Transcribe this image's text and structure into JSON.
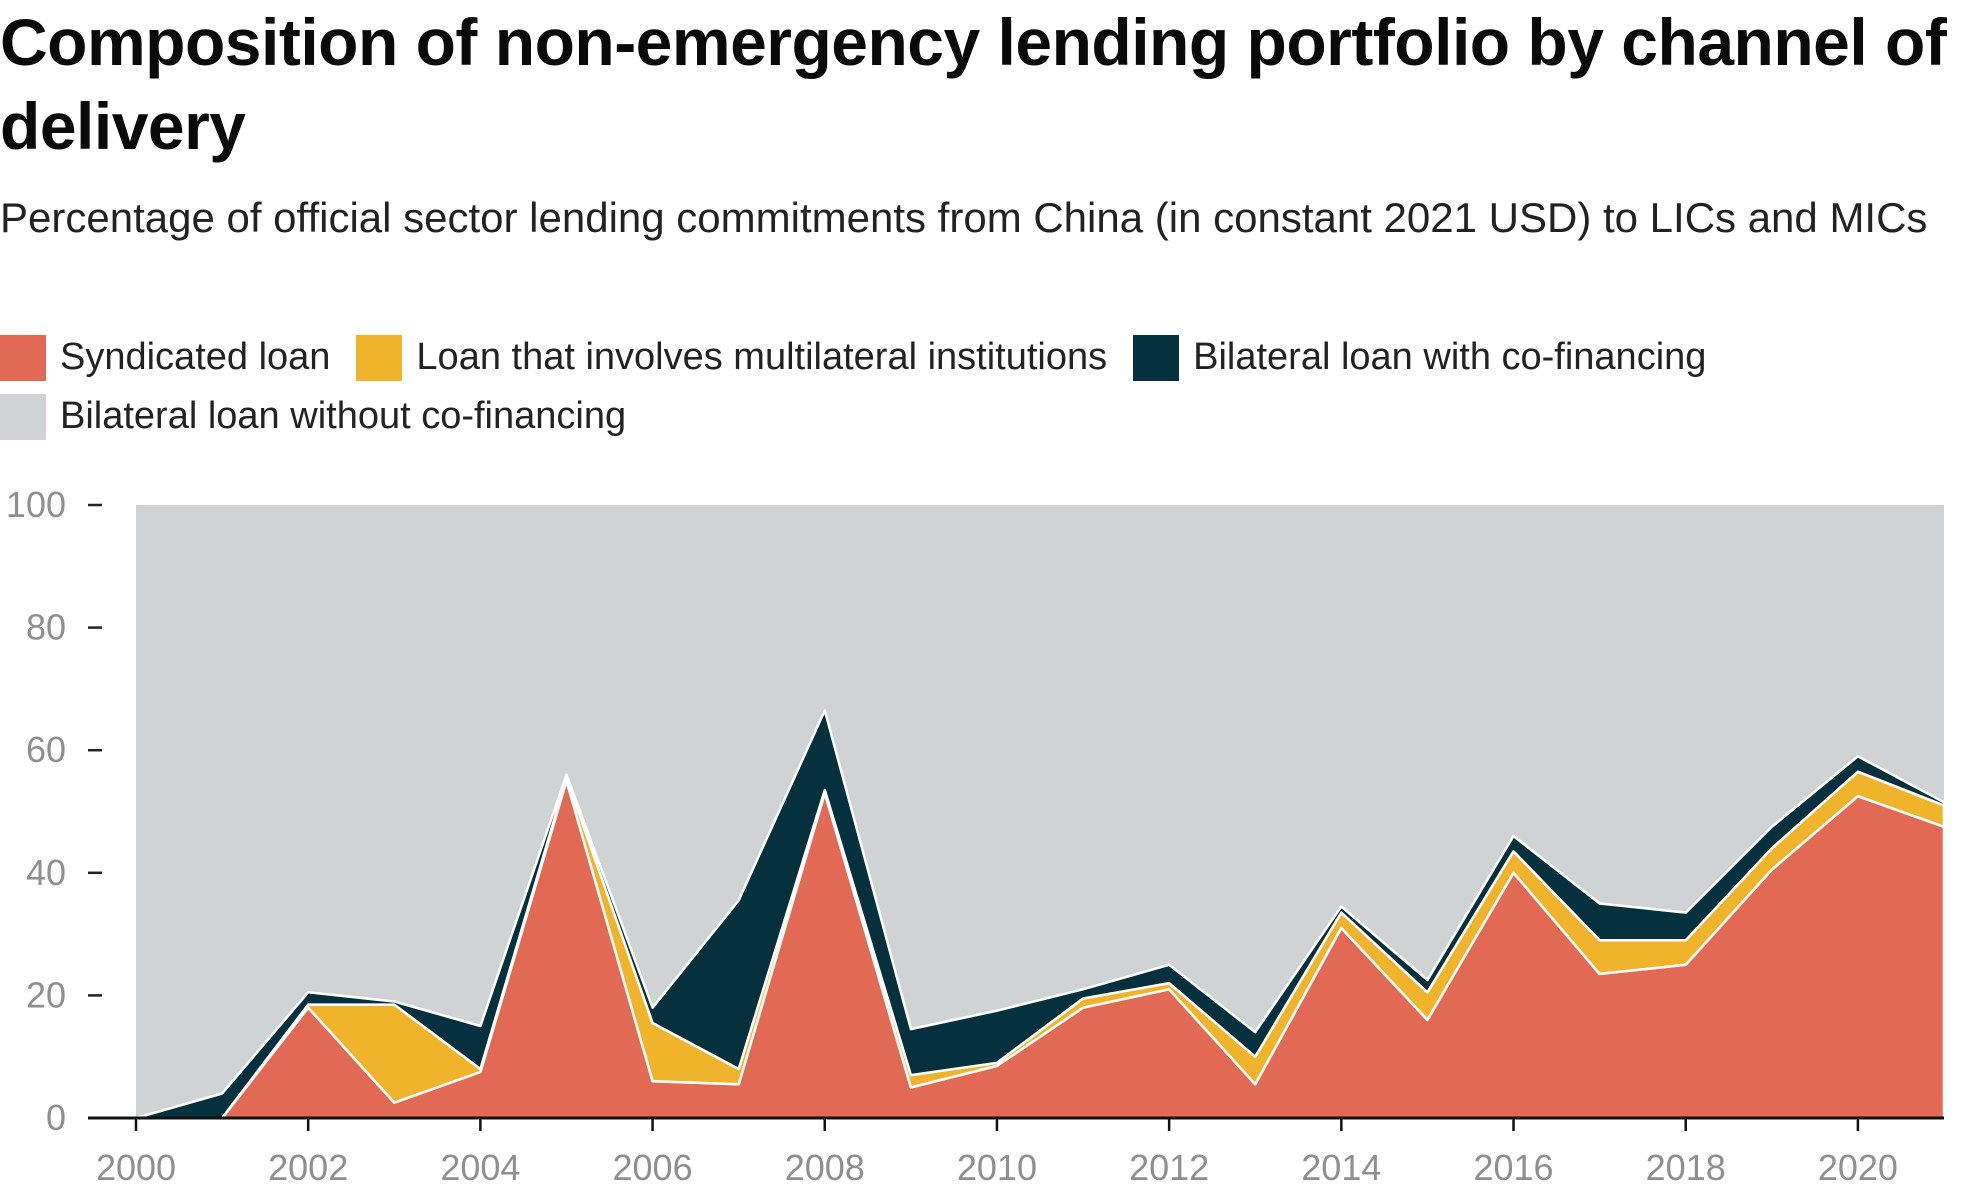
{
  "title": "Composition of non-emergency lending portfolio by channel of delivery",
  "subtitle": "Percentage of official sector lending commitments from China (in constant 2021 USD) to LICs and MICs",
  "colors": {
    "syndicated": "#e26a55",
    "multilateral": "#efb42c",
    "cofinancing": "#05303d",
    "without_cofinancing": "#cfd3d4"
  },
  "legend": [
    {
      "label": "Syndicated loan",
      "color": "#e26a55"
    },
    {
      "label": "Loan that involves multilateral institutions",
      "color": "#efb42c"
    },
    {
      "label": "Bilateral loan with co-financing",
      "color": "#05303d"
    },
    {
      "label": "Bilateral loan without co-financing",
      "color": "#cfd3d4"
    }
  ],
  "chart_data": {
    "type": "area",
    "stacked": true,
    "x": [
      2000,
      2001,
      2002,
      2003,
      2004,
      2005,
      2006,
      2007,
      2008,
      2009,
      2010,
      2011,
      2012,
      2013,
      2014,
      2015,
      2016,
      2017,
      2018,
      2019,
      2020,
      2021
    ],
    "series": [
      {
        "name": "Syndicated loan",
        "color": "#e26a55",
        "values": [
          0,
          0,
          18,
          2.5,
          7.5,
          55,
          6,
          5.5,
          53,
          5,
          8.5,
          18,
          21,
          5.5,
          31,
          16,
          40,
          23.5,
          25,
          40.5,
          52.5,
          47.5
        ]
      },
      {
        "name": "Loan that involves multilateral institutions",
        "color": "#efb42c",
        "values": [
          0,
          0,
          0.5,
          16,
          0.5,
          0.5,
          9.5,
          2.5,
          0.5,
          2,
          0.5,
          1.5,
          1,
          4.5,
          2.5,
          4.5,
          3.5,
          5.5,
          4,
          3.5,
          4,
          3.5
        ]
      },
      {
        "name": "Bilateral loan with co-financing",
        "color": "#05303d",
        "values": [
          0,
          4,
          2,
          0.5,
          7,
          0.5,
          2.5,
          27.5,
          13,
          7.5,
          8.5,
          1.5,
          3,
          4,
          1,
          2,
          2.5,
          6,
          4.5,
          3.5,
          2.5,
          0.5
        ]
      },
      {
        "name": "Bilateral loan without co-financing",
        "color": "#cfd3d4",
        "values": [
          100,
          96,
          79.5,
          81,
          85,
          44,
          82,
          64.5,
          33.5,
          85.5,
          82.5,
          79,
          75,
          86,
          65.5,
          77.5,
          54,
          65,
          66.5,
          52.5,
          41,
          48.5
        ]
      }
    ],
    "x_ticks": [
      "2000",
      "2002",
      "2004",
      "2006",
      "2008",
      "2010",
      "2012",
      "2014",
      "2016",
      "2018",
      "2020"
    ],
    "y_ticks": [
      "0",
      "20",
      "40",
      "60",
      "80",
      "100"
    ],
    "xlim": [
      2000,
      2021
    ],
    "ylim": [
      0,
      100
    ],
    "grid": false,
    "legend_position": "top"
  }
}
